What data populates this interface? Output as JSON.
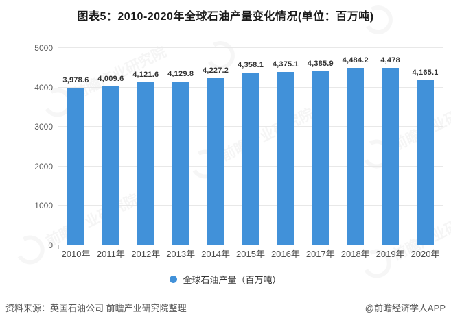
{
  "title": "图表5：2010-2020年全球石油产量变化情况(单位：百万吨)",
  "chart_data": {
    "type": "bar",
    "title": "图表5：2010-2020年全球石油产量变化情况(单位：百万吨)",
    "categories": [
      "2010年",
      "2011年",
      "2012年",
      "2013年",
      "2014年",
      "2015年",
      "2016年",
      "2017年",
      "2018年",
      "2019年",
      "2020年"
    ],
    "values": [
      3978.6,
      4009.6,
      4121.6,
      4129.8,
      4227.2,
      4358.1,
      4375.1,
      4385.9,
      4484.2,
      4478,
      4165.1
    ],
    "value_labels": [
      "3,978.6",
      "4,009.6",
      "4,121.6",
      "4,129.8",
      "4,227.2",
      "4,358.1",
      "4,375.1",
      "4,385.9",
      "4,484.2",
      "4,478",
      "4,165.1"
    ],
    "series_name": "全球石油产量（百万吨）",
    "xlabel": "",
    "ylabel": "单位：百万吨",
    "ylim": [
      0,
      5000
    ],
    "yticks": [
      0,
      1000,
      2000,
      3000,
      4000,
      5000
    ],
    "grid": true,
    "legend_position": "bottom",
    "bar_color": "#4191d9"
  },
  "legend": {
    "label": "全球石油产量（百万吨）"
  },
  "footer": {
    "source": "资料来源：英国石油公司 前瞻产业研究院整理",
    "credit": "@前瞻经济学人APP"
  },
  "watermark": {
    "text": "前瞻产业研究院"
  },
  "colors": {
    "accent": "#4191d9",
    "grid": "#e8e8e8",
    "axis": "#d4d4d4",
    "text_dark": "#333333",
    "text_muted": "#595959"
  }
}
